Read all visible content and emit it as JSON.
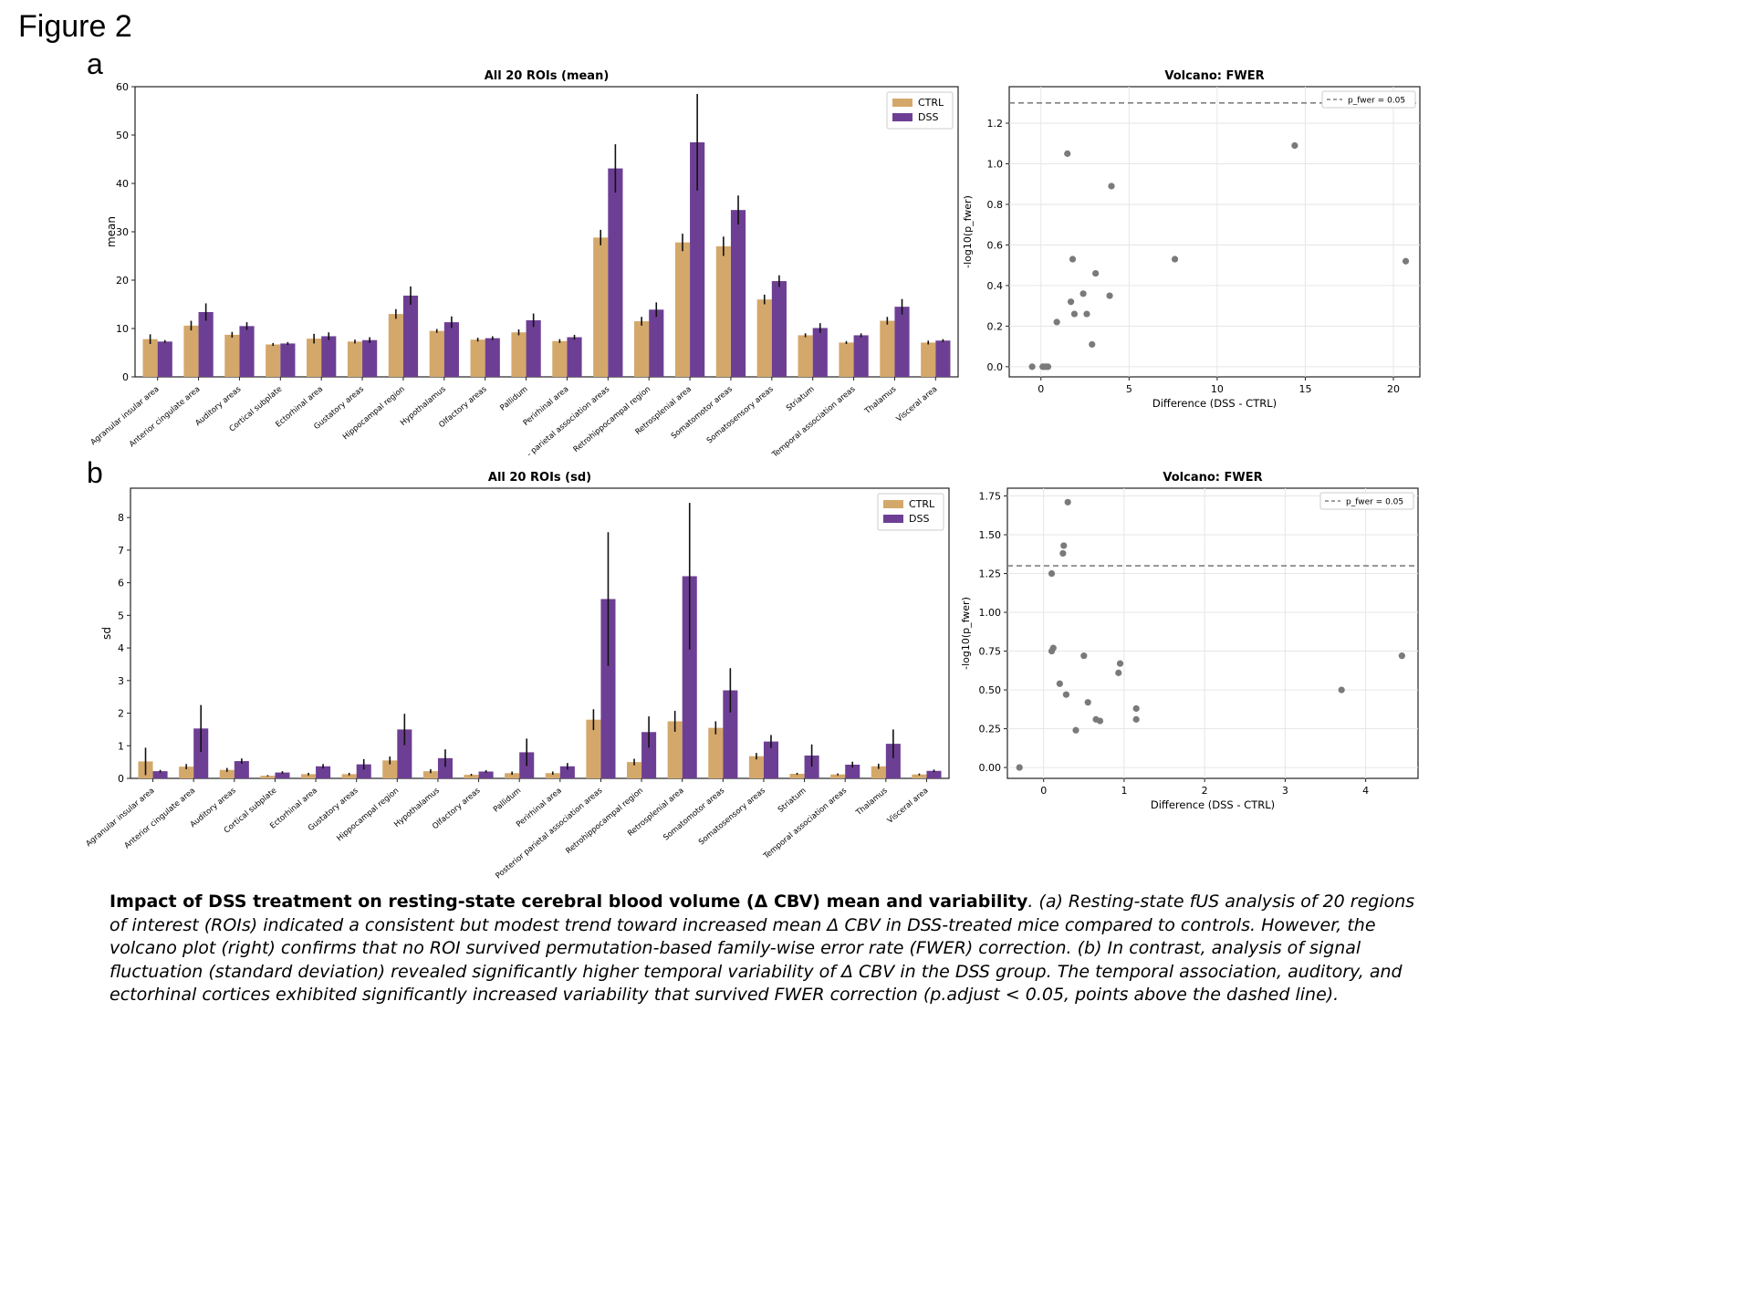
{
  "figure_title": "Figure 2",
  "panels": {
    "a": "a",
    "b": "b"
  },
  "colors": {
    "ctrl": "#d4a86a",
    "dss": "#6d3f94",
    "point": "#7a7a7a",
    "threshold": "#808080"
  },
  "caption": {
    "bold": "Impact of DSS treatment on resting-state cerebral blood volume (Δ CBV) mean and variability",
    "text": ". (a) Resting-state fUS analysis of 20 regions of interest (ROIs) indicated a consistent but modest trend toward increased mean Δ CBV in DSS-treated mice compared to controls. However, the volcano plot (right) confirms that no ROI survived permutation-based family-wise error rate (FWER) correction. (b) In contrast, analysis of signal fluctuation (standard deviation) revealed significantly higher temporal variability of Δ CBV in the DSS group. The temporal association, auditory, and ectorhinal cortices exhibited significantly increased variability that survived FWER correction (p.adjust < 0.05, points above the dashed line)."
  },
  "chart_data": [
    {
      "id": "mean_bar",
      "type": "bar",
      "title": "All 20 ROIs (mean)",
      "xlabel": "",
      "ylabel": "mean",
      "ylim": [
        0,
        60
      ],
      "yticks": [
        0,
        10,
        20,
        30,
        40,
        50,
        60
      ],
      "legend_position": "top-right",
      "categories": [
        "Agranular insular area",
        "Anterior cingulate area",
        "Auditory areas",
        "Cortical subplate",
        "Ectorhinal area",
        "Gustatory areas",
        "Hippocampal region",
        "Hypothalamus",
        "Olfactory areas",
        "Pallidum",
        "Perirhinal area",
        "- parietal association areas",
        "Retrohippocampal region",
        "Retrosplenial area",
        "Somatomotor areas",
        "Somatosensory areas",
        "Striatum",
        "Temporal association areas",
        "Thalamus",
        "Visceral area"
      ],
      "series": [
        {
          "name": "CTRL",
          "values": [
            7.8,
            10.6,
            8.7,
            6.7,
            7.9,
            7.3,
            13.0,
            9.5,
            7.7,
            9.2,
            7.4,
            28.8,
            11.5,
            27.8,
            27.0,
            16.0,
            8.6,
            7.1,
            11.6,
            7.1
          ],
          "errors": [
            1.0,
            1.0,
            0.6,
            0.3,
            1.0,
            0.4,
            1.0,
            0.4,
            0.4,
            0.6,
            0.4,
            1.6,
            0.9,
            1.8,
            2.0,
            1.0,
            0.4,
            0.3,
            0.8,
            0.4
          ]
        },
        {
          "name": "DSS",
          "values": [
            7.3,
            13.4,
            10.5,
            6.9,
            8.4,
            7.6,
            16.8,
            11.3,
            8.0,
            11.7,
            8.2,
            43.1,
            13.9,
            48.5,
            34.5,
            19.8,
            10.1,
            8.6,
            14.5,
            7.5
          ],
          "errors": [
            0.3,
            1.8,
            0.8,
            0.3,
            0.8,
            0.6,
            1.9,
            1.2,
            0.4,
            1.4,
            0.5,
            5.0,
            1.5,
            10.0,
            3.0,
            1.2,
            1.0,
            0.4,
            1.6,
            0.3
          ]
        }
      ]
    },
    {
      "id": "mean_volcano",
      "type": "scatter",
      "title": "Volcano: FWER",
      "xlabel": "Difference (DSS - CTRL)",
      "ylabel": "-log10(p_fwer)",
      "xlim": [
        -1.8,
        21.5
      ],
      "ylim": [
        -0.05,
        1.38
      ],
      "xticks": [
        0,
        5,
        10,
        15,
        20
      ],
      "yticks": [
        0.0,
        0.2,
        0.4,
        0.6,
        0.8,
        1.0,
        1.2
      ],
      "threshold": 1.3,
      "legend": "p_fwer = 0.05",
      "grid": true,
      "x": [
        -0.5,
        0.1,
        0.2,
        0.3,
        0.4,
        0.9,
        1.5,
        1.7,
        1.8,
        1.9,
        2.4,
        2.6,
        2.9,
        3.1,
        3.9,
        4.0,
        7.6,
        14.4,
        20.7
      ],
      "y": [
        0.0,
        0.0,
        0.0,
        0.0,
        0.0,
        0.22,
        1.05,
        0.32,
        0.53,
        0.26,
        0.36,
        0.26,
        0.11,
        0.46,
        0.35,
        0.89,
        0.53,
        1.09,
        0.52
      ]
    },
    {
      "id": "sd_bar",
      "type": "bar",
      "title": "All 20 ROIs (sd)",
      "xlabel": "",
      "ylabel": "sd",
      "ylim": [
        0,
        8.9
      ],
      "yticks": [
        0,
        1,
        2,
        3,
        4,
        5,
        6,
        7,
        8
      ],
      "legend_position": "top-right",
      "categories": [
        "Agranular insular area",
        "Anterior cingulate area",
        "Auditory areas",
        "Cortical subplate",
        "Ectorhinal area",
        "Gustatory areas",
        "Hippocampal region",
        "Hypothalamus",
        "Olfactory areas",
        "Pallidum",
        "Perirhinal area",
        "Posterior parietal association areas",
        "Retrohippocampal region",
        "Retrosplenial area",
        "Somatomotor areas",
        "Somatosensory areas",
        "Striatum",
        "Temporal association areas",
        "Thalamus",
        "Visceral area"
      ],
      "series": [
        {
          "name": "CTRL",
          "values": [
            0.52,
            0.36,
            0.26,
            0.08,
            0.13,
            0.13,
            0.55,
            0.22,
            0.11,
            0.16,
            0.16,
            1.8,
            0.5,
            1.75,
            1.55,
            0.68,
            0.14,
            0.12,
            0.37,
            0.12
          ],
          "errors": [
            0.42,
            0.08,
            0.06,
            0.02,
            0.04,
            0.04,
            0.12,
            0.06,
            0.03,
            0.05,
            0.05,
            0.32,
            0.1,
            0.32,
            0.2,
            0.1,
            0.03,
            0.03,
            0.08,
            0.03
          ]
        },
        {
          "name": "DSS",
          "values": [
            0.22,
            1.53,
            0.53,
            0.18,
            0.37,
            0.43,
            1.5,
            0.62,
            0.21,
            0.8,
            0.37,
            5.5,
            1.42,
            6.2,
            2.7,
            1.13,
            0.7,
            0.42,
            1.06,
            0.23
          ],
          "errors": [
            0.04,
            0.72,
            0.08,
            0.04,
            0.07,
            0.16,
            0.48,
            0.27,
            0.04,
            0.42,
            0.1,
            2.05,
            0.48,
            2.25,
            0.68,
            0.2,
            0.34,
            0.09,
            0.44,
            0.04
          ]
        }
      ]
    },
    {
      "id": "sd_volcano",
      "type": "scatter",
      "title": "Volcano: FWER",
      "xlabel": "Difference (DSS - CTRL)",
      "ylabel": "-log10(p_fwer)",
      "xlim": [
        -0.45,
        4.65
      ],
      "ylim": [
        -0.07,
        1.8
      ],
      "xticks": [
        0,
        1,
        2,
        3,
        4
      ],
      "yticks": [
        0.0,
        0.25,
        0.5,
        0.75,
        1.0,
        1.25,
        1.5,
        1.75
      ],
      "threshold": 1.3,
      "legend": "p_fwer = 0.05",
      "grid": true,
      "x": [
        -0.3,
        0.1,
        0.12,
        0.1,
        0.2,
        0.24,
        0.25,
        0.3,
        0.28,
        0.4,
        0.5,
        0.55,
        0.65,
        0.7,
        0.93,
        0.95,
        1.15,
        1.15,
        3.7,
        4.45
      ],
      "y": [
        0.0,
        1.25,
        0.77,
        0.75,
        0.54,
        1.38,
        1.43,
        1.71,
        0.47,
        0.24,
        0.72,
        0.42,
        0.31,
        0.3,
        0.61,
        0.67,
        0.38,
        0.31,
        0.5,
        0.72
      ]
    }
  ]
}
